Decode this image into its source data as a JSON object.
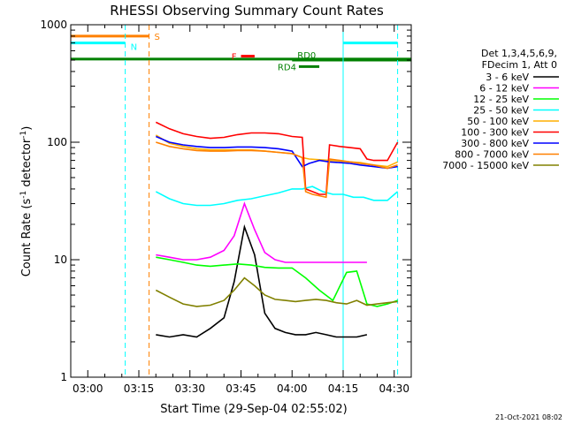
{
  "chart_data": {
    "type": "line",
    "title": "RHESSI Observing Summary Count Rates",
    "xlabel": "Start Time (29-Sep-04 02:55:02)",
    "ylabel": "Count Rate (s",
    "ylabel_sup1": "-1",
    "ylabel_mid": " detector",
    "ylabel_sup2": "-1",
    "ylabel_end": ")",
    "yscale": "log",
    "ylim": [
      1,
      1000
    ],
    "xlim_minutes": [
      -5,
      95
    ],
    "x_tick_labels": [
      "03:00",
      "03:15",
      "03:30",
      "03:45",
      "04:00",
      "04:15",
      "04:30"
    ],
    "x_tick_minutes": [
      0,
      15,
      30,
      45,
      60,
      75,
      90
    ],
    "y_tick_labels": [
      "1",
      "10",
      "100",
      "1000"
    ],
    "y_tick_values": [
      1,
      10,
      100,
      1000
    ],
    "legend_header": [
      "Det 1,3,4,5,6,9,",
      "FDecim 1, Att 0"
    ],
    "legend_position": "right",
    "footer_date": "21-Oct-2021 08:02",
    "series": [
      {
        "name": "3 - 6 keV",
        "color": "#000000",
        "x": [
          20,
          24,
          28,
          32,
          36,
          40,
          43,
          46,
          49,
          52,
          55,
          58,
          61,
          64,
          67,
          70,
          73,
          76,
          79,
          82
        ],
        "y": [
          2.3,
          2.2,
          2.3,
          2.2,
          2.6,
          3.2,
          6.5,
          19.0,
          11.0,
          3.5,
          2.6,
          2.4,
          2.3,
          2.3,
          2.4,
          2.3,
          2.2,
          2.2,
          2.2,
          2.3
        ]
      },
      {
        "name": "6 - 12 keV",
        "color": "#ff00ff",
        "x": [
          20,
          24,
          28,
          32,
          36,
          40,
          43,
          46,
          49,
          52,
          55,
          58,
          61,
          64,
          67,
          70,
          73,
          76,
          79,
          82
        ],
        "y": [
          11.0,
          10.5,
          10.0,
          10.0,
          10.5,
          12.0,
          16.0,
          30.0,
          18.0,
          11.5,
          10.0,
          9.5,
          9.5,
          9.5,
          9.5,
          9.5,
          9.5,
          9.5,
          9.5,
          9.5
        ]
      },
      {
        "name": "12 - 25 keV",
        "color": "#00ff00",
        "x": [
          20,
          24,
          28,
          32,
          36,
          40,
          44,
          48,
          52,
          56,
          60,
          64,
          68,
          72,
          76,
          79,
          82,
          85,
          88,
          91
        ],
        "y": [
          10.5,
          10.0,
          9.5,
          9.0,
          8.8,
          9.0,
          9.2,
          9.0,
          8.6,
          8.5,
          8.5,
          7.0,
          5.5,
          4.5,
          7.8,
          8.0,
          4.2,
          4.0,
          4.2,
          4.5
        ]
      },
      {
        "name": "25 - 50 keV",
        "color": "#00ffff",
        "x": [
          20,
          24,
          28,
          32,
          36,
          40,
          44,
          48,
          52,
          56,
          60,
          63,
          66,
          69,
          72,
          75,
          78,
          81,
          84,
          88,
          91
        ],
        "y": [
          38,
          33,
          30,
          29,
          29,
          30,
          32,
          33,
          35,
          37,
          40,
          40,
          42,
          38,
          36,
          36,
          34,
          34,
          32,
          32,
          38
        ]
      },
      {
        "name": "50 - 100 keV",
        "color": "#ffaf00",
        "x": [
          20,
          24,
          28,
          32,
          36,
          40,
          44,
          48,
          52,
          56,
          60,
          63,
          65,
          68,
          71,
          74,
          77,
          80,
          84,
          88,
          91
        ],
        "y": [
          115,
          98,
          92,
          88,
          86,
          86,
          86,
          86,
          84,
          82,
          80,
          74,
          72,
          71,
          70,
          69,
          68,
          67,
          64,
          62,
          68
        ]
      },
      {
        "name": "100 - 300 keV",
        "color": "#ff0000",
        "x": [
          20,
          24,
          28,
          32,
          36,
          40,
          44,
          48,
          52,
          56,
          60,
          63,
          64,
          66,
          68,
          70,
          71,
          74,
          77,
          80,
          82,
          84,
          88,
          91
        ],
        "y": [
          148,
          130,
          118,
          112,
          108,
          110,
          116,
          120,
          120,
          118,
          112,
          110,
          40,
          38,
          36,
          36,
          95,
          92,
          90,
          88,
          72,
          70,
          70,
          100
        ]
      },
      {
        "name": "300 - 800 keV",
        "color": "#0000ff",
        "x": [
          20,
          24,
          28,
          32,
          36,
          40,
          44,
          48,
          52,
          56,
          60,
          63,
          65,
          68,
          71,
          74,
          77,
          80,
          84,
          88,
          91
        ],
        "y": [
          112,
          100,
          95,
          92,
          90,
          90,
          91,
          91,
          90,
          88,
          84,
          62,
          66,
          70,
          68,
          67,
          66,
          64,
          62,
          60,
          62
        ]
      },
      {
        "name": "800 - 7000 keV",
        "color": "#ff8000",
        "x": [
          20,
          24,
          28,
          32,
          36,
          40,
          44,
          48,
          52,
          56,
          60,
          63,
          64,
          66,
          68,
          70,
          71,
          74,
          77,
          80,
          84,
          88,
          91
        ],
        "y": [
          100,
          92,
          88,
          85,
          84,
          84,
          85,
          85,
          84,
          82,
          80,
          74,
          38,
          36,
          35,
          34,
          72,
          70,
          68,
          66,
          64,
          60,
          64
        ]
      },
      {
        "name": "7000 - 15000 keV",
        "color": "#808000",
        "x": [
          20,
          24,
          28,
          32,
          36,
          40,
          43,
          46,
          49,
          52,
          55,
          58,
          61,
          64,
          67,
          70,
          73,
          76,
          79,
          82,
          85,
          88,
          91
        ],
        "y": [
          5.5,
          4.8,
          4.2,
          4.0,
          4.1,
          4.5,
          5.5,
          7.0,
          6.0,
          5.0,
          4.6,
          4.5,
          4.4,
          4.5,
          4.6,
          4.5,
          4.3,
          4.2,
          4.5,
          4.1,
          4.2,
          4.3,
          4.4
        ]
      }
    ],
    "flag_bars": [
      {
        "label": "S",
        "color": "#ff8000",
        "x": [
          -5,
          18
        ],
        "y": 800
      },
      {
        "label": "N",
        "color": "#00ffff",
        "x": [
          -5,
          11
        ],
        "y": 700
      },
      {
        "label": "",
        "color": "#00ffff",
        "x": [
          75,
          91
        ],
        "y": 700
      },
      {
        "label": "",
        "color": "#008000",
        "x": [
          -5,
          95
        ],
        "y": 510
      },
      {
        "label": "F",
        "color": "#ff0000",
        "x": [
          45,
          49
        ],
        "y": 540
      },
      {
        "label": "RD0",
        "color": "#008000",
        "x": [
          60,
          95
        ],
        "y": 500
      },
      {
        "label": "RD4",
        "color": "#008000",
        "x": [
          62,
          68
        ],
        "y": 440
      }
    ],
    "vertical_lines": [
      {
        "color": "#00ffff",
        "style": "dashed",
        "x": 11
      },
      {
        "color": "#ff8000",
        "style": "dashed",
        "x": 18
      },
      {
        "color": "#00ffff",
        "style": "solid",
        "x": 75
      },
      {
        "color": "#00ffff",
        "style": "dashed",
        "x": 91
      }
    ]
  }
}
